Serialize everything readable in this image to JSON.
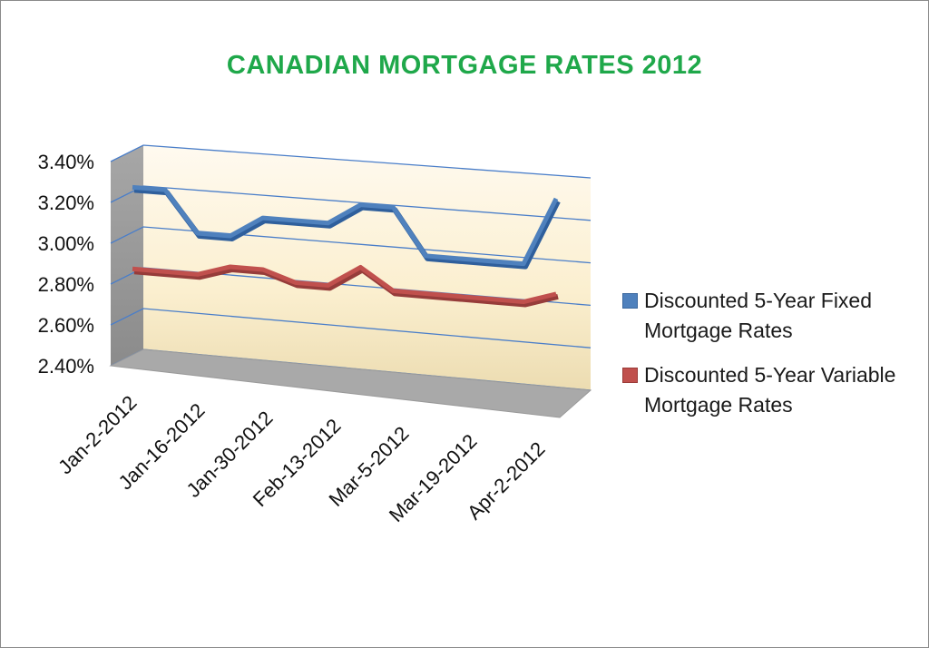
{
  "chart_data": {
    "type": "line",
    "title": "CANADIAN MORTGAGE RATES 2012",
    "xlabel": "",
    "ylabel": "",
    "x_tick_labels": [
      "Jan-2-2012",
      "Jan-16-2012",
      "Jan-30-2012",
      "Feb-13-2012",
      "Mar-5-2012",
      "Mar-19-2012",
      "Apr-2-2012"
    ],
    "y_tick_labels": [
      "2.40%",
      "2.60%",
      "2.80%",
      "3.00%",
      "3.20%",
      "3.40%"
    ],
    "ylim": [
      2.4,
      3.4
    ],
    "y_ticks": [
      2.4,
      2.6,
      2.8,
      3.0,
      3.2,
      3.4
    ],
    "grid": true,
    "legend_position": "right",
    "style": "3d-line",
    "series": [
      {
        "name": "Discounted 5-Year Fixed Mortgage Rates",
        "color": "#4f81bd",
        "values": [
          3.19,
          3.19,
          2.99,
          2.99,
          3.09,
          3.09,
          3.09,
          3.19,
          3.19,
          2.97,
          2.97,
          2.97,
          2.97,
          3.29
        ]
      },
      {
        "name": "Discounted 5-Year Variable Mortgage Rates",
        "color": "#c0504d",
        "values": [
          2.79,
          2.79,
          2.79,
          2.84,
          2.84,
          2.79,
          2.79,
          2.89,
          2.79,
          2.79,
          2.79,
          2.79,
          2.79,
          2.84
        ]
      }
    ]
  }
}
